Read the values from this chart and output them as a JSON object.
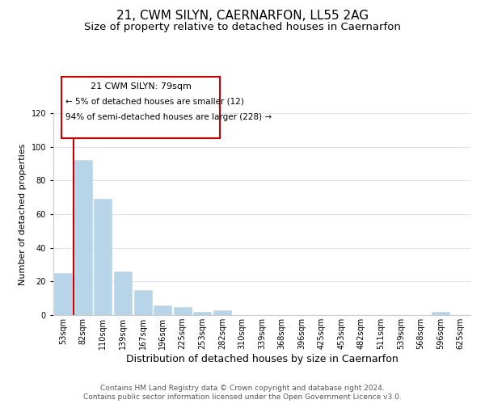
{
  "title": "21, CWM SILYN, CAERNARFON, LL55 2AG",
  "subtitle": "Size of property relative to detached houses in Caernarfon",
  "xlabel": "Distribution of detached houses by size in Caernarfon",
  "ylabel": "Number of detached properties",
  "bar_labels": [
    "53sqm",
    "82sqm",
    "110sqm",
    "139sqm",
    "167sqm",
    "196sqm",
    "225sqm",
    "253sqm",
    "282sqm",
    "310sqm",
    "339sqm",
    "368sqm",
    "396sqm",
    "425sqm",
    "453sqm",
    "482sqm",
    "511sqm",
    "539sqm",
    "568sqm",
    "596sqm",
    "625sqm"
  ],
  "bar_values": [
    25,
    92,
    69,
    26,
    15,
    6,
    5,
    2,
    3,
    0,
    0,
    0,
    0,
    0,
    0,
    0,
    0,
    0,
    0,
    2,
    0
  ],
  "bar_color": "#b8d4e8",
  "marker_line_color": "#cc0000",
  "ylim": [
    0,
    120
  ],
  "yticks": [
    0,
    20,
    40,
    60,
    80,
    100,
    120
  ],
  "annotation_title": "21 CWM SILYN: 79sqm",
  "annotation_line1": "← 5% of detached houses are smaller (12)",
  "annotation_line2": "94% of semi-detached houses are larger (228) →",
  "annotation_box_edge": "#cc0000",
  "annotation_box_color": "#ffffff",
  "grid_color": "#d8e4f0",
  "footer1": "Contains HM Land Registry data © Crown copyright and database right 2024.",
  "footer2": "Contains public sector information licensed under the Open Government Licence v3.0.",
  "title_fontsize": 11,
  "subtitle_fontsize": 9.5,
  "tick_fontsize": 7,
  "xlabel_fontsize": 9,
  "ylabel_fontsize": 8,
  "annotation_fontsize": 8,
  "footer_fontsize": 6.5
}
